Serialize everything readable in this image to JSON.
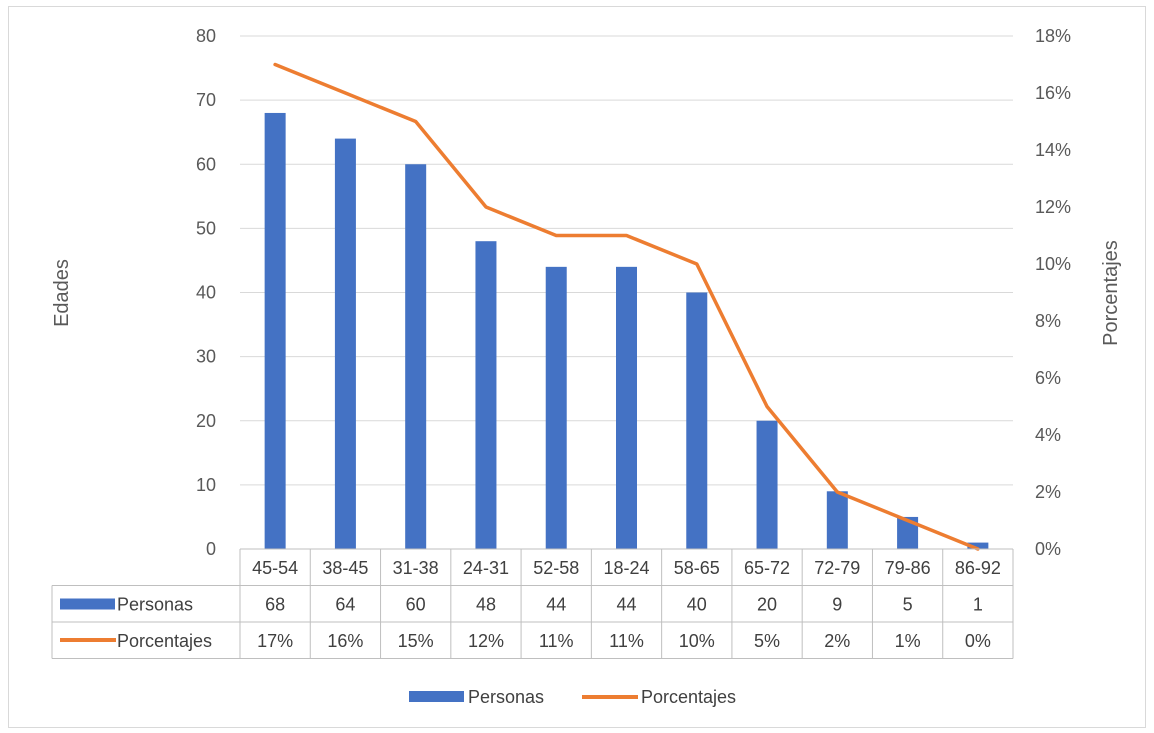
{
  "chart_data": {
    "type": "bar",
    "categories": [
      "45-54",
      "38-45",
      "31-38",
      "24-31",
      "52-58",
      "18-24",
      "58-65",
      "65-72",
      "72-79",
      "79-86",
      "86-92"
    ],
    "series": [
      {
        "name": "Personas",
        "type": "bar",
        "axis": "left",
        "color": "#4472C4",
        "values": [
          68,
          64,
          60,
          48,
          44,
          44,
          40,
          20,
          9,
          5,
          1
        ]
      },
      {
        "name": "Porcentajes",
        "type": "line",
        "axis": "right",
        "color": "#ED7D31",
        "values": [
          0.17,
          0.16,
          0.15,
          0.12,
          0.11,
          0.11,
          0.1,
          0.05,
          0.02,
          0.01,
          0.0
        ]
      }
    ],
    "table_values": {
      "Personas": [
        "68",
        "64",
        "60",
        "48",
        "44",
        "44",
        "40",
        "20",
        "9",
        "5",
        "1"
      ],
      "Porcentajes": [
        "17%",
        "16%",
        "15%",
        "12%",
        "11%",
        "11%",
        "10%",
        "5%",
        "2%",
        "1%",
        "0%"
      ]
    },
    "ylabel": "Edades",
    "y2label": "Porcentajes",
    "ylim": [
      0,
      80
    ],
    "y2lim": [
      0,
      0.18
    ],
    "yticks": [
      "0",
      "10",
      "20",
      "30",
      "40",
      "50",
      "60",
      "70",
      "80"
    ],
    "y2ticks": [
      "0%",
      "2%",
      "4%",
      "6%",
      "8%",
      "10%",
      "12%",
      "14%",
      "16%",
      "18%"
    ],
    "grid": true,
    "legend_position": "bottom",
    "data_table": true
  }
}
